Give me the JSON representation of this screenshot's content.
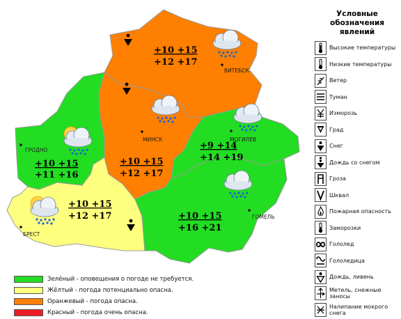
{
  "map": {
    "cities": {
      "vitebsk": "ВИТЕБСК",
      "minsk": "МИНСК",
      "grodno": "ГРОДНО",
      "mogilev": "МОГИЛЕВ",
      "brest": "БРЕСТ",
      "gomel": "ГОМЕЛЬ"
    },
    "regions": {
      "vitebsk": {
        "level": "orange",
        "night": "+10 +15",
        "day": "+12 +17",
        "phenomenon": "snow"
      },
      "minsk": {
        "level": "orange",
        "night": "+10 +15",
        "day": "+12 +17",
        "phenomenon": "snow"
      },
      "grodno": {
        "level": "green",
        "night": "+10 +15",
        "day": "+11 +16"
      },
      "mogilev": {
        "level": "green",
        "night": "+9 +14",
        "day": "+14 +19"
      },
      "brest": {
        "level": "yellow",
        "night": "+10 +15",
        "day": "+12 +17",
        "phenomenon": "snow"
      },
      "gomel": {
        "level": "green",
        "night": "+10 +15",
        "day": "+16 +21"
      }
    },
    "colors": {
      "green": "#22dd22",
      "yellow": "#ffff7f",
      "orange": "#ff7f00",
      "red": "#ee1c24"
    }
  },
  "map_legend": [
    {
      "color": "#22dd22",
      "text": "Зелёный - оповещения о погоде не требуется."
    },
    {
      "color": "#ffff7f",
      "text": "Жёлтый - погода потенциально опасна."
    },
    {
      "color": "#ff7f00",
      "text": "Оранжевый - погода опасна."
    },
    {
      "color": "#ee1c24",
      "text": "Красный - погода очень опасна."
    }
  ],
  "phenomena_legend": {
    "title_line1": "Условные",
    "title_line2": "обозначения явлений",
    "items": [
      {
        "icon": "high-temperature-icon",
        "label": "Высокие температуры"
      },
      {
        "icon": "low-temperature-icon",
        "label": "Низкие температуры"
      },
      {
        "icon": "wind-icon",
        "label": "Ветер"
      },
      {
        "icon": "fog-icon",
        "label": "Туман"
      },
      {
        "icon": "rime-icon",
        "label": "Изморозь"
      },
      {
        "icon": "hail-icon",
        "label": "Град"
      },
      {
        "icon": "snow-icon",
        "label": "Снег"
      },
      {
        "icon": "sleet-icon",
        "label": "Дождь со снегом"
      },
      {
        "icon": "thunderstorm-icon",
        "label": "Гроза"
      },
      {
        "icon": "squall-icon",
        "label": "Шквал"
      },
      {
        "icon": "fire-danger-icon",
        "label": "Пожарная опасность"
      },
      {
        "icon": "frost-icon",
        "label": "Заморозки"
      },
      {
        "icon": "glaze-ice-icon",
        "label": "Гололед"
      },
      {
        "icon": "black-ice-icon",
        "label": "Гололедица"
      },
      {
        "icon": "rain-shower-icon",
        "label": "Дождь, ливень"
      },
      {
        "icon": "blizzard-icon",
        "label": "Метель, снежные заносы"
      },
      {
        "icon": "snow-accretion-icon",
        "label": "Налипание мокрого снега"
      }
    ]
  }
}
